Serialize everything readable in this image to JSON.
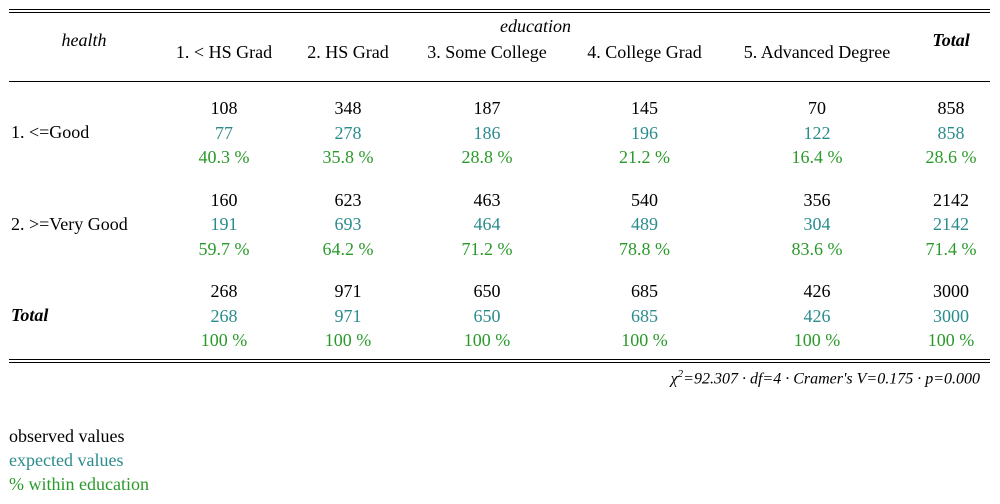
{
  "table": {
    "row_var": "health",
    "col_var": "education",
    "columns": [
      "1. < HS Grad",
      "2. HS Grad",
      "3. Some College",
      "4. College Grad",
      "5. Advanced Degree",
      "Total"
    ],
    "rows": [
      {
        "label": "1. <=Good",
        "observed": [
          "108",
          "348",
          "187",
          "145",
          "70",
          "858"
        ],
        "expected": [
          "77",
          "278",
          "186",
          "196",
          "122",
          "858"
        ],
        "percent": [
          "40.3 %",
          "35.8 %",
          "28.8 %",
          "21.2 %",
          "16.4 %",
          "28.6 %"
        ]
      },
      {
        "label": "2. >=Very Good",
        "observed": [
          "160",
          "623",
          "463",
          "540",
          "356",
          "2142"
        ],
        "expected": [
          "191",
          "693",
          "464",
          "489",
          "304",
          "2142"
        ],
        "percent": [
          "59.7 %",
          "64.2 %",
          "71.2 %",
          "78.8 %",
          "83.6 %",
          "71.4 %"
        ]
      },
      {
        "label": "Total",
        "observed": [
          "268",
          "971",
          "650",
          "685",
          "426",
          "3000"
        ],
        "expected": [
          "268",
          "971",
          "650",
          "685",
          "426",
          "3000"
        ],
        "percent": [
          "100 %",
          "100 %",
          "100 %",
          "100 %",
          "100 %",
          "100 %"
        ]
      }
    ]
  },
  "stats": {
    "chi_symbol": "χ",
    "chi_sup": "2",
    "text": "=92.307 · df=4 · Cramer's V=0.175 · p=0.000"
  },
  "legend": {
    "observed": "observed values",
    "expected": "expected values",
    "percent": "% within education"
  },
  "colors": {
    "observed": "#000000",
    "expected": "#2a8c8c",
    "percent": "#2a9a2a"
  }
}
